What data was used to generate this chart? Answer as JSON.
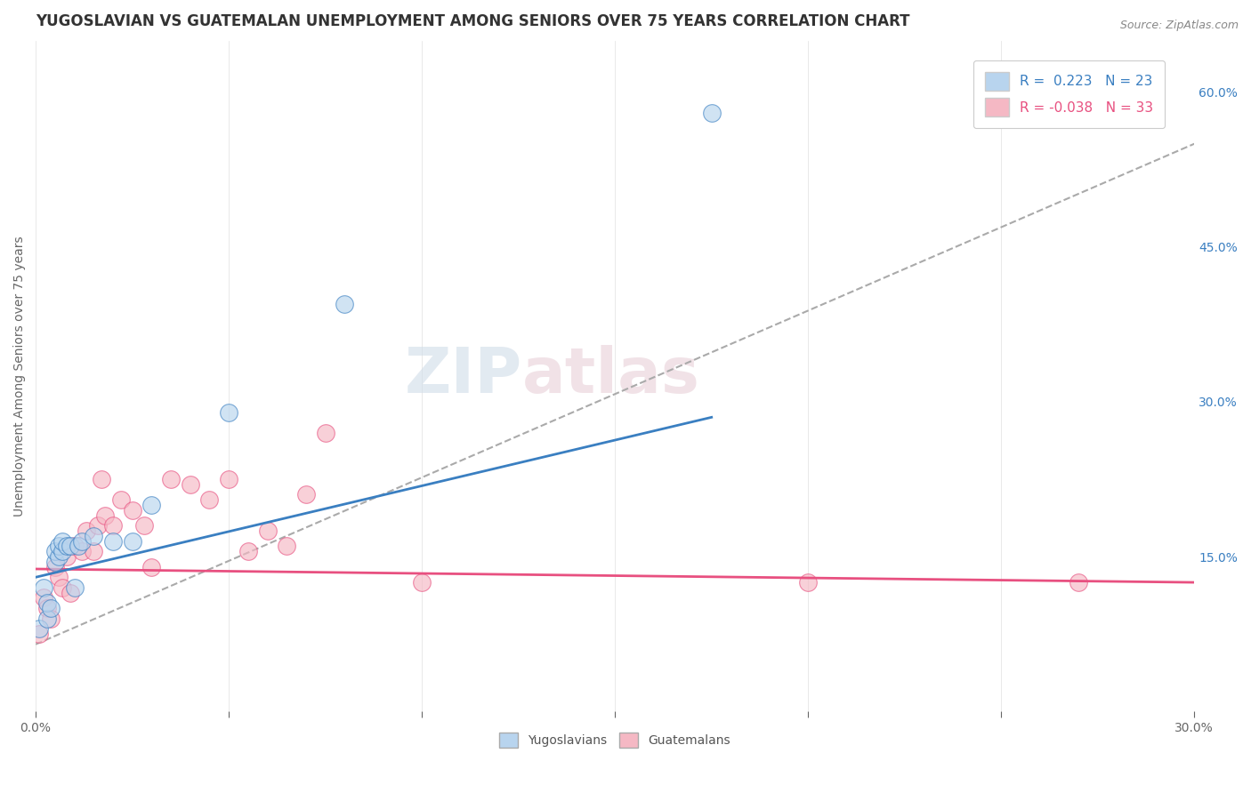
{
  "title": "YUGOSLAVIAN VS GUATEMALAN UNEMPLOYMENT AMONG SENIORS OVER 75 YEARS CORRELATION CHART",
  "source": "Source: ZipAtlas.com",
  "xlabel": "",
  "ylabel": "Unemployment Among Seniors over 75 years",
  "xlim": [
    0.0,
    0.3
  ],
  "ylim": [
    0.0,
    0.65
  ],
  "xticks": [
    0.0,
    0.05,
    0.1,
    0.15,
    0.2,
    0.25,
    0.3
  ],
  "xticklabels": [
    "0.0%",
    "",
    "",
    "",
    "",
    "",
    "30.0%"
  ],
  "yticks_right": [
    0.0,
    0.15,
    0.3,
    0.45,
    0.6
  ],
  "ytick_right_labels": [
    "",
    "15.0%",
    "30.0%",
    "45.0%",
    "60.0%"
  ],
  "background_color": "#ffffff",
  "grid_color": "#e0e0e0",
  "watermark_zip": "ZIP",
  "watermark_atlas": "atlas",
  "yugoslavian_color": "#b8d4ee",
  "guatemalan_color": "#f5b8c4",
  "yugoslavian_line_color": "#3a7fc1",
  "guatemalan_line_color": "#e85080",
  "r_yugo": 0.223,
  "n_yugo": 23,
  "r_guate": -0.038,
  "n_guate": 33,
  "yugo_x": [
    0.001,
    0.002,
    0.003,
    0.003,
    0.004,
    0.005,
    0.005,
    0.006,
    0.006,
    0.007,
    0.007,
    0.008,
    0.009,
    0.01,
    0.011,
    0.012,
    0.015,
    0.02,
    0.025,
    0.03,
    0.05,
    0.08,
    0.175
  ],
  "yugo_y": [
    0.08,
    0.12,
    0.09,
    0.105,
    0.1,
    0.145,
    0.155,
    0.15,
    0.16,
    0.155,
    0.165,
    0.16,
    0.16,
    0.12,
    0.16,
    0.165,
    0.17,
    0.165,
    0.165,
    0.2,
    0.29,
    0.395,
    0.58
  ],
  "guate_x": [
    0.001,
    0.002,
    0.003,
    0.004,
    0.005,
    0.006,
    0.007,
    0.008,
    0.009,
    0.01,
    0.012,
    0.013,
    0.015,
    0.016,
    0.017,
    0.018,
    0.02,
    0.022,
    0.025,
    0.028,
    0.03,
    0.035,
    0.04,
    0.045,
    0.05,
    0.055,
    0.06,
    0.065,
    0.07,
    0.075,
    0.1,
    0.2,
    0.27
  ],
  "guate_y": [
    0.075,
    0.11,
    0.1,
    0.09,
    0.14,
    0.13,
    0.12,
    0.15,
    0.115,
    0.16,
    0.155,
    0.175,
    0.155,
    0.18,
    0.225,
    0.19,
    0.18,
    0.205,
    0.195,
    0.18,
    0.14,
    0.225,
    0.22,
    0.205,
    0.225,
    0.155,
    0.175,
    0.16,
    0.21,
    0.27,
    0.125,
    0.125,
    0.125
  ],
  "trend_dashed_color": "#aaaaaa",
  "marker_size": 200,
  "marker_alpha": 0.65,
  "legend_text_color": "#3a7fc1",
  "title_fontsize": 12,
  "label_fontsize": 10,
  "yugo_trend_x0": 0.0,
  "yugo_trend_y0": 0.13,
  "yugo_trend_x1": 0.175,
  "yugo_trend_y1": 0.285,
  "guate_trend_x0": 0.0,
  "guate_trend_y0": 0.138,
  "guate_trend_x1": 0.3,
  "guate_trend_y1": 0.125,
  "dashed_trend_x0": 0.0,
  "dashed_trend_y0": 0.065,
  "dashed_trend_x1": 0.3,
  "dashed_trend_y1": 0.55
}
